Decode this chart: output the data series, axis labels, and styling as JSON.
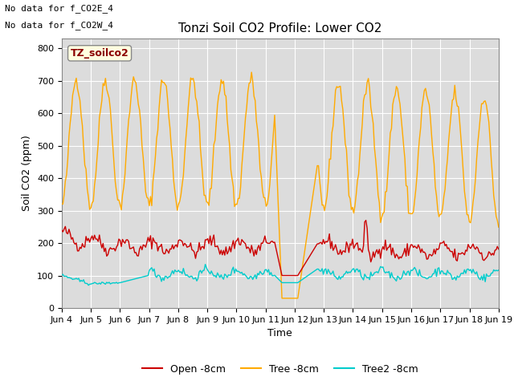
{
  "title": "Tonzi Soil CO2 Profile: Lower CO2",
  "ylabel": "Soil CO2 (ppm)",
  "xlabel": "Time",
  "top_left_text_line1": "No data for f_CO2E_4",
  "top_left_text_line2": "No data for f_CO2W_4",
  "box_label": "TZ_soilco2",
  "ylim": [
    0,
    830
  ],
  "yticks": [
    0,
    100,
    200,
    300,
    400,
    500,
    600,
    700,
    800
  ],
  "xtick_labels": [
    "Jun 4",
    "Jun 5",
    "Jun 6",
    "Jun 7",
    "Jun 8",
    "Jun 9",
    "Jun 10",
    "Jun 11",
    "Jun 12",
    "Jun 13",
    "Jun 14",
    "Jun 15",
    "Jun 16",
    "Jun 17",
    "Jun 18",
    "Jun 19"
  ],
  "legend_labels": [
    "Open -8cm",
    "Tree -8cm",
    "Tree2 -8cm"
  ],
  "legend_colors": [
    "#cc0000",
    "#ffaa00",
    "#00cccc"
  ],
  "plot_bg_color": "#dcdcdc",
  "tree_color": "#ffaa00",
  "open_color": "#cc0000",
  "tree2_color": "#00cccc",
  "tree_lw": 1.0,
  "open_lw": 1.0,
  "tree2_lw": 1.0,
  "grid_color": "#ffffff",
  "title_fontsize": 11,
  "axis_fontsize": 9,
  "tick_fontsize": 8
}
